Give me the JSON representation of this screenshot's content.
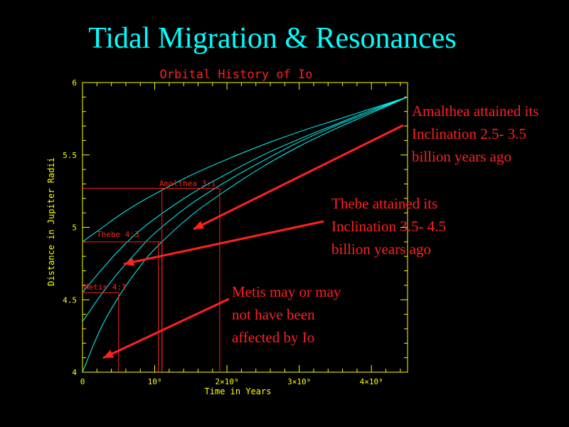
{
  "slide": {
    "title": "Tidal Migration & Resonances",
    "title_color": "#00ffff"
  },
  "annotations": [
    {
      "lines": [
        "Amalthea attained its",
        "Inclination 2.5- 3.5",
        "billion years ago"
      ]
    },
    {
      "lines": [
        "Thebe attained its",
        "Inclination 3.5- 4.5",
        "billion years ago"
      ]
    },
    {
      "lines": [
        "Metis may or may",
        "not have been",
        "affected by Io"
      ]
    }
  ],
  "annotation_color": "#ff2020",
  "chart_data": {
    "type": "line",
    "title": "Orbital History of Io",
    "xlabel": "Time in Years",
    "ylabel": "Distance in Jupiter Radii",
    "xlim": [
      0,
      4500000000.0
    ],
    "ylim": [
      4,
      6
    ],
    "x_ticks": [
      0,
      1000000000.0,
      2000000000.0,
      3000000000.0,
      4000000000.0
    ],
    "x_tick_labels": [
      "0",
      "10⁹",
      "2×10⁹",
      "3×10⁹",
      "4×10⁹"
    ],
    "y_ticks": [
      4,
      4.5,
      5,
      5.5,
      6
    ],
    "y_tick_labels": [
      "4",
      "4.5",
      "5",
      "5.5",
      "6"
    ],
    "grid": false,
    "series": [
      {
        "x": [
          0,
          250000000.0,
          500000000.0,
          750000000.0,
          1000000000.0,
          1500000000.0,
          2000000000.0,
          2500000000.0,
          3000000000.0,
          3500000000.0,
          4000000000.0,
          4500000000.0
        ],
        "y": [
          4.9,
          4.99,
          5.08,
          5.16,
          5.23,
          5.36,
          5.47,
          5.57,
          5.66,
          5.74,
          5.82,
          5.9
        ]
      },
      {
        "x": [
          0,
          250000000.0,
          500000000.0,
          750000000.0,
          1000000000.0,
          1500000000.0,
          2000000000.0,
          2500000000.0,
          3000000000.0,
          3500000000.0,
          4000000000.0,
          4500000000.0
        ],
        "y": [
          4.55,
          4.7,
          4.84,
          4.96,
          5.06,
          5.23,
          5.37,
          5.5,
          5.61,
          5.71,
          5.81,
          5.9
        ]
      },
      {
        "x": [
          0,
          250000000.0,
          500000000.0,
          750000000.0,
          1000000000.0,
          1500000000.0,
          2000000000.0,
          2500000000.0,
          3000000000.0,
          3500000000.0,
          4000000000.0,
          4500000000.0
        ],
        "y": [
          4.35,
          4.53,
          4.69,
          4.83,
          4.96,
          5.16,
          5.32,
          5.46,
          5.59,
          5.7,
          5.8,
          5.9
        ]
      },
      {
        "x": [
          0,
          250000000.0,
          500000000.0,
          750000000.0,
          1000000000.0,
          1500000000.0,
          2000000000.0,
          2500000000.0,
          3000000000.0,
          3500000000.0,
          4000000000.0,
          4500000000.0
        ],
        "y": [
          4.0,
          4.3,
          4.52,
          4.7,
          4.85,
          5.08,
          5.26,
          5.42,
          5.56,
          5.68,
          5.79,
          5.9
        ]
      }
    ],
    "resonances": [
      {
        "label": "Metis 4:1",
        "distance": 4.55,
        "times": [
          500000000.0
        ]
      },
      {
        "label": "Thebe 4:3",
        "distance": 4.9,
        "times": [
          1050000000.0,
          1100000000.0
        ]
      },
      {
        "label": "Amalthea 3:1",
        "distance": 5.27,
        "times": [
          1100000000.0,
          1900000000.0
        ]
      }
    ],
    "curve_color": "#00ffff",
    "frame_color": "#ffff00",
    "title_color": "#ff2020",
    "resonance_color": "#ff2020"
  }
}
